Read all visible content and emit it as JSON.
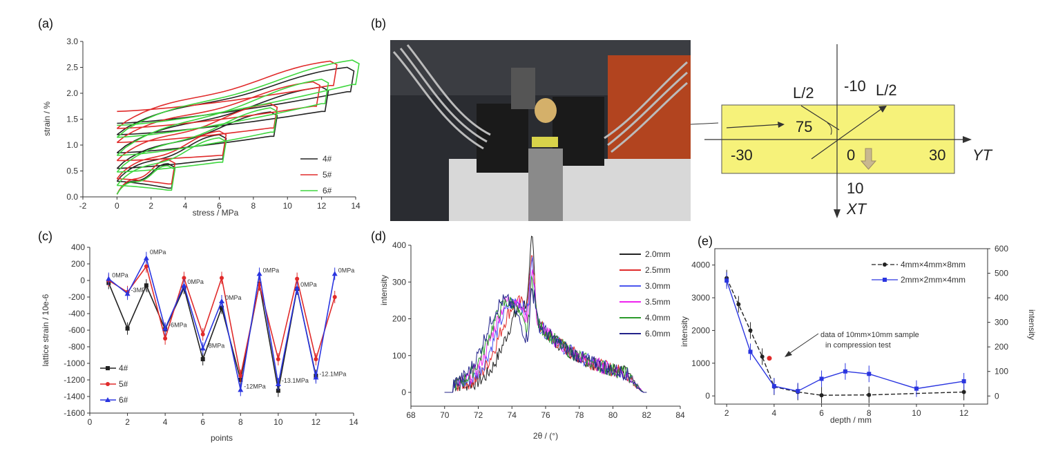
{
  "panels": {
    "a": "(a)",
    "b": "(b)",
    "c": "(c)",
    "d": "(d)",
    "e": "(e)"
  },
  "photo_diagram": {
    "labels": {
      "l2_left": "L/2",
      "l2_right": "L/2",
      "top": "-10",
      "angle": "75",
      "left": "-30",
      "center": "0",
      "right": "30",
      "bottom": "10",
      "yt": "YT",
      "xt": "XT"
    },
    "colors": {
      "sample": "#f6f27a"
    }
  },
  "chart_data": [
    {
      "id": "a",
      "type": "line",
      "xlabel": "stress / MPa",
      "ylabel": "strain / %",
      "xlim": [
        -2,
        14
      ],
      "ylim": [
        0,
        3.0
      ],
      "xticks": [
        "-2",
        "0",
        "2",
        "4",
        "6",
        "8",
        "10",
        "12",
        "14"
      ],
      "yticks": [
        "0.0",
        "0.5",
        "1.0",
        "1.5",
        "2.0",
        "2.5",
        "3.0"
      ],
      "legend": "right",
      "series": [
        {
          "name": "4#",
          "color": "#222222",
          "loops": [
            {
              "peak_stress": 3.0,
              "top": 0.62,
              "base": 0.3
            },
            {
              "peak_stress": 6.0,
              "top": 1.18,
              "base": 0.55
            },
            {
              "peak_stress": 9.0,
              "top": 1.62,
              "base": 0.85
            },
            {
              "peak_stress": 12.0,
              "top": 2.1,
              "base": 1.2
            },
            {
              "peak_stress": 13.5,
              "top": 2.48,
              "base": 1.42
            }
          ]
        },
        {
          "name": "5#",
          "color": "#e02a2a",
          "loops": [
            {
              "peak_stress": 3.0,
              "top": 0.7,
              "base": 0.35
            },
            {
              "peak_stress": 6.0,
              "top": 1.25,
              "base": 0.7
            },
            {
              "peak_stress": 9.0,
              "top": 1.78,
              "base": 1.05
            },
            {
              "peak_stress": 11.5,
              "top": 2.2,
              "base": 1.32
            },
            {
              "peak_stress": 12.5,
              "top": 2.6,
              "base": 1.65
            }
          ]
        },
        {
          "name": "6#",
          "color": "#3ed63e",
          "loops": [
            {
              "peak_stress": 3.0,
              "top": 0.58,
              "base": 0.22
            },
            {
              "peak_stress": 6.0,
              "top": 1.12,
              "base": 0.48
            },
            {
              "peak_stress": 9.0,
              "top": 1.7,
              "base": 0.8
            },
            {
              "peak_stress": 12.0,
              "top": 2.25,
              "base": 1.15
            },
            {
              "peak_stress": 13.8,
              "top": 2.62,
              "base": 1.38
            }
          ]
        }
      ]
    },
    {
      "id": "c",
      "type": "line",
      "xlabel": "points",
      "ylabel": "lattice strain / 10e-6",
      "xlim": [
        0,
        14
      ],
      "ylim": [
        -1600,
        400
      ],
      "xticks": [
        "0",
        "2",
        "4",
        "6",
        "8",
        "10",
        "12",
        "14"
      ],
      "yticks": [
        "-1600",
        "-1400",
        "-1200",
        "-1000",
        "-800",
        "-600",
        "-400",
        "-200",
        "0",
        "200",
        "400"
      ],
      "legend": "bottom-left",
      "x": [
        1,
        2,
        3,
        4,
        5,
        6,
        7,
        8,
        9,
        10,
        11,
        12,
        13
      ],
      "series": [
        {
          "name": "4#",
          "color": "#222222",
          "values": [
            -30,
            -580,
            -60,
            -590,
            -90,
            -950,
            -330,
            -1200,
            -40,
            -1330,
            -100,
            -1150,
            null
          ]
        },
        {
          "name": "5#",
          "color": "#e02a2a",
          "values": [
            0,
            -140,
            170,
            -700,
            30,
            -650,
            30,
            -1150,
            -50,
            -950,
            20,
            -950,
            -200
          ]
        },
        {
          "name": "6#",
          "color": "#2a35e0",
          "values": [
            20,
            -160,
            270,
            -580,
            -60,
            -820,
            -250,
            -1320,
            80,
            -1250,
            -90,
            -1170,
            80
          ]
        }
      ],
      "annotations": [
        {
          "x": 1,
          "y": 20,
          "text": "0MPa"
        },
        {
          "x": 2,
          "y": -160,
          "text": "-3MPa"
        },
        {
          "x": 3,
          "y": 300,
          "text": "0MPa"
        },
        {
          "x": 4,
          "y": -580,
          "text": "-6MPa"
        },
        {
          "x": 5,
          "y": -60,
          "text": "0MPa"
        },
        {
          "x": 6,
          "y": -830,
          "text": "-8MPa"
        },
        {
          "x": 7,
          "y": -250,
          "text": "0MPa"
        },
        {
          "x": 8,
          "y": -1320,
          "text": "-12MPa"
        },
        {
          "x": 9,
          "y": 80,
          "text": "0MPa"
        },
        {
          "x": 10,
          "y": -1250,
          "text": "-13.1MPa"
        },
        {
          "x": 11,
          "y": -90,
          "text": "0MPa"
        },
        {
          "x": 12,
          "y": -1170,
          "text": "-12.1MPa"
        },
        {
          "x": 13,
          "y": 80,
          "text": "0MPa"
        }
      ]
    },
    {
      "id": "d",
      "type": "line",
      "xlabel": "2θ / (°)",
      "ylabel": "intensity",
      "xlim": [
        68,
        84
      ],
      "ylim": [
        0,
        400
      ],
      "xticks": [
        "68",
        "70",
        "72",
        "74",
        "76",
        "78",
        "80",
        "82",
        "84"
      ],
      "yticks": [
        "0",
        "100",
        "200",
        "300",
        "400"
      ],
      "legend": "top-right",
      "series": [
        {
          "name": "2.0mm",
          "color": "#222222",
          "peak_center": 74.8,
          "peak_height": 220
        },
        {
          "name": "2.5mm",
          "color": "#e02a2a",
          "peak_center": 74.4,
          "peak_height": 225
        },
        {
          "name": "3.0mm",
          "color": "#4a55ee",
          "peak_center": 74.2,
          "peak_height": 230
        },
        {
          "name": "3.5mm",
          "color": "#ee22ee",
          "peak_center": 74.0,
          "peak_height": 235
        },
        {
          "name": "4.0mm",
          "color": "#2a9a2a",
          "peak_center": 73.8,
          "peak_height": 225
        },
        {
          "name": "6.0mm",
          "color": "#22228a",
          "peak_center": 73.6,
          "peak_height": 230
        }
      ]
    },
    {
      "id": "e",
      "type": "line",
      "xlabel": "depth / mm",
      "ylabel": "intensity",
      "y2label": "intensity",
      "xlim": [
        1.5,
        13
      ],
      "ylim": [
        -250,
        4500
      ],
      "y2lim": [
        -33,
        600
      ],
      "xticks": [
        "2",
        "4",
        "6",
        "8",
        "10",
        "12"
      ],
      "yticks": [
        "0",
        "1000",
        "2000",
        "3000",
        "4000"
      ],
      "y2ticks": [
        "0",
        "100",
        "200",
        "300",
        "400",
        "500",
        "600"
      ],
      "legend": "top-right",
      "series": [
        {
          "name": "4mm×4mm×8mm",
          "axis": "left",
          "color": "#222222",
          "x": [
            2,
            2.5,
            3,
            3.5,
            4,
            5,
            6,
            8,
            12
          ],
          "values": [
            3600,
            2800,
            2000,
            1200,
            280,
            120,
            20,
            30,
            120
          ]
        },
        {
          "name": "2mm×2mm×4mm",
          "axis": "right",
          "color": "#2a35e0",
          "x": [
            2,
            3,
            4,
            5,
            6,
            7,
            8,
            10,
            12
          ],
          "values": [
            470,
            180,
            40,
            20,
            70,
            100,
            90,
            30,
            60
          ]
        }
      ],
      "points": [
        {
          "series": "10mm×10mm",
          "x": 3.8,
          "y": 1150,
          "color": "#e02a2a"
        }
      ],
      "annotations": [
        {
          "text": "data of 10mm×10mm sample"
        },
        {
          "text": "in compression test"
        }
      ]
    }
  ]
}
